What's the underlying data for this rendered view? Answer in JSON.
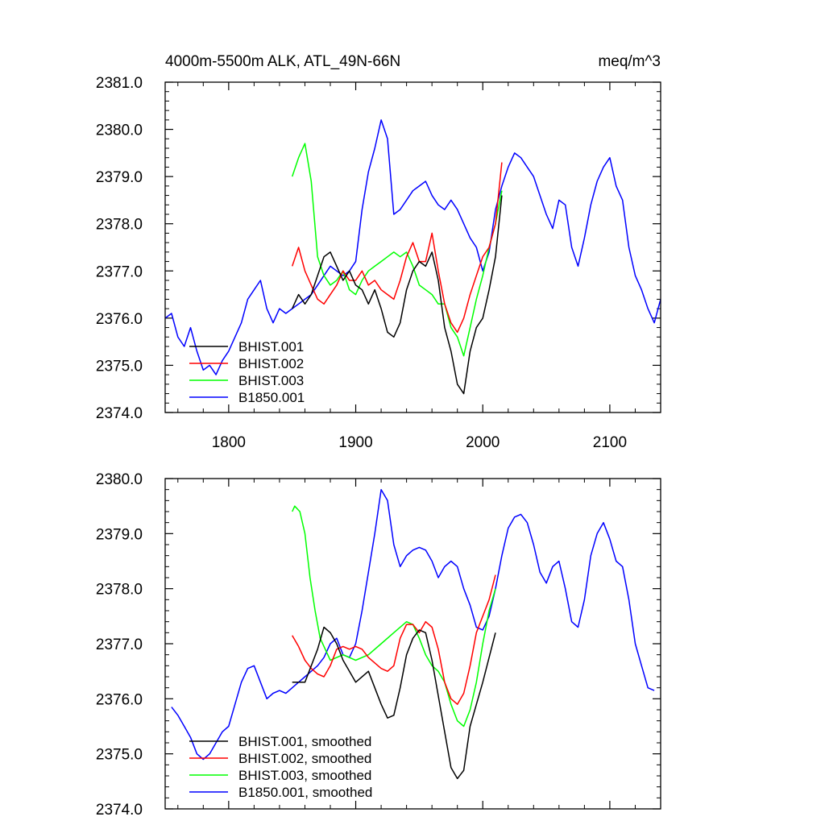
{
  "header": {
    "left": "4000m-5500m ALK, ATL_49N-66N",
    "right": "meq/m^3"
  },
  "colors": {
    "BHIST.001": "#000000",
    "BHIST.002": "#ff0000",
    "BHIST.003": "#00ff00",
    "B1850.001": "#0000ff"
  },
  "chart_data": [
    {
      "type": "line",
      "title": "4000m-5500m ALK, ATL_49N-66N",
      "units": "meq/m^3",
      "xlim": [
        1750,
        2140
      ],
      "ylim": [
        2374.0,
        2381.0
      ],
      "xticks": [
        1800,
        1900,
        2000,
        2100
      ],
      "xtick_labels": [
        "1800",
        "1900",
        "2000",
        "2100"
      ],
      "yticks": [
        2374.0,
        2375.0,
        2376.0,
        2377.0,
        2378.0,
        2379.0,
        2380.0,
        2381.0
      ],
      "ytick_labels": [
        "2374.0",
        "2375.0",
        "2376.0",
        "2377.0",
        "2378.0",
        "2379.0",
        "2380.0",
        "2381.0"
      ],
      "legend_position": "bottom-left",
      "series": [
        {
          "name": "BHIST.001",
          "color": "#000000",
          "x": [
            1850,
            1855,
            1860,
            1865,
            1870,
            1875,
            1880,
            1885,
            1890,
            1895,
            1900,
            1905,
            1910,
            1915,
            1920,
            1925,
            1930,
            1935,
            1940,
            1945,
            1950,
            1955,
            1960,
            1965,
            1970,
            1975,
            1980,
            1985,
            1990,
            1995,
            2000,
            2005,
            2010,
            2015
          ],
          "y": [
            2376.2,
            2376.5,
            2376.3,
            2376.5,
            2376.9,
            2377.3,
            2377.4,
            2377.1,
            2376.8,
            2377.0,
            2376.7,
            2376.6,
            2376.3,
            2376.6,
            2376.2,
            2375.7,
            2375.6,
            2375.9,
            2376.6,
            2377.0,
            2377.2,
            2377.1,
            2377.4,
            2376.8,
            2375.8,
            2375.3,
            2374.6,
            2374.4,
            2375.3,
            2375.8,
            2376.0,
            2376.6,
            2377.3,
            2378.6
          ]
        },
        {
          "name": "BHIST.002",
          "color": "#ff0000",
          "x": [
            1850,
            1855,
            1860,
            1865,
            1870,
            1875,
            1880,
            1885,
            1890,
            1895,
            1900,
            1905,
            1910,
            1915,
            1920,
            1925,
            1930,
            1935,
            1940,
            1945,
            1950,
            1955,
            1960,
            1965,
            1970,
            1975,
            1980,
            1985,
            1990,
            1995,
            2000,
            2005,
            2010,
            2015
          ],
          "y": [
            2377.1,
            2377.5,
            2377.0,
            2376.7,
            2376.4,
            2376.3,
            2376.5,
            2376.7,
            2377.0,
            2376.8,
            2376.8,
            2377.0,
            2376.7,
            2376.8,
            2376.6,
            2376.5,
            2376.4,
            2376.8,
            2377.3,
            2377.6,
            2377.2,
            2377.2,
            2377.8,
            2377.0,
            2376.3,
            2375.9,
            2375.7,
            2376.0,
            2376.5,
            2376.9,
            2377.3,
            2377.5,
            2378.0,
            2379.3
          ]
        },
        {
          "name": "BHIST.003",
          "color": "#00ff00",
          "x": [
            1850,
            1855,
            1860,
            1865,
            1870,
            1875,
            1880,
            1885,
            1890,
            1895,
            1900,
            1905,
            1910,
            1915,
            1920,
            1925,
            1930,
            1935,
            1940,
            1945,
            1950,
            1955,
            1960,
            1965,
            1970,
            1975,
            1980,
            1985,
            1990,
            1995,
            2000,
            2005,
            2010,
            2015
          ],
          "y": [
            2379.0,
            2379.4,
            2379.7,
            2378.9,
            2377.3,
            2376.9,
            2376.7,
            2376.8,
            2377.0,
            2376.6,
            2376.5,
            2376.8,
            2377.0,
            2377.1,
            2377.2,
            2377.3,
            2377.4,
            2377.3,
            2377.4,
            2377.1,
            2376.7,
            2376.6,
            2376.5,
            2376.3,
            2376.3,
            2375.8,
            2375.6,
            2375.2,
            2375.8,
            2376.4,
            2376.9,
            2377.5,
            2378.0,
            2378.7
          ]
        },
        {
          "name": "B1850.001",
          "color": "#0000ff",
          "x": [
            1750,
            1755,
            1760,
            1765,
            1770,
            1775,
            1780,
            1785,
            1790,
            1795,
            1800,
            1805,
            1810,
            1815,
            1820,
            1825,
            1830,
            1835,
            1840,
            1845,
            1850,
            1855,
            1860,
            1865,
            1870,
            1875,
            1880,
            1885,
            1890,
            1895,
            1900,
            1905,
            1910,
            1915,
            1920,
            1925,
            1930,
            1935,
            1940,
            1945,
            1950,
            1955,
            1960,
            1965,
            1970,
            1975,
            1980,
            1985,
            1990,
            1995,
            2000,
            2005,
            2010,
            2015,
            2020,
            2025,
            2030,
            2035,
            2040,
            2045,
            2050,
            2055,
            2060,
            2065,
            2070,
            2075,
            2080,
            2085,
            2090,
            2095,
            2100,
            2105,
            2110,
            2115,
            2120,
            2125,
            2130,
            2135,
            2140
          ],
          "y": [
            2376.0,
            2376.1,
            2375.6,
            2375.4,
            2375.8,
            2375.3,
            2374.9,
            2375.0,
            2374.8,
            2375.1,
            2375.3,
            2375.6,
            2375.9,
            2376.4,
            2376.6,
            2376.8,
            2376.2,
            2375.9,
            2376.2,
            2376.1,
            2376.2,
            2376.3,
            2376.4,
            2376.5,
            2376.7,
            2376.9,
            2377.1,
            2377.0,
            2376.9,
            2377.0,
            2377.2,
            2378.3,
            2379.1,
            2379.6,
            2380.2,
            2379.8,
            2378.2,
            2378.3,
            2378.5,
            2378.7,
            2378.8,
            2378.9,
            2378.6,
            2378.4,
            2378.3,
            2378.5,
            2378.3,
            2378.0,
            2377.7,
            2377.5,
            2377.0,
            2377.4,
            2378.3,
            2378.8,
            2379.2,
            2379.5,
            2379.4,
            2379.2,
            2379.0,
            2378.6,
            2378.2,
            2377.9,
            2378.5,
            2378.4,
            2377.5,
            2377.1,
            2377.7,
            2378.4,
            2378.9,
            2379.2,
            2379.4,
            2378.8,
            2378.5,
            2377.5,
            2376.9,
            2376.6,
            2376.2,
            2375.9,
            2376.4
          ]
        }
      ]
    },
    {
      "type": "line",
      "xlim": [
        1750,
        2140
      ],
      "ylim": [
        2374.0,
        2380.0
      ],
      "xticks": [
        1800,
        1900,
        2000,
        2100
      ],
      "yticks": [
        2374.0,
        2375.0,
        2376.0,
        2377.0,
        2378.0,
        2379.0,
        2380.0
      ],
      "ytick_labels": [
        "2374.0",
        "2375.0",
        "2376.0",
        "2377.0",
        "2378.0",
        "2379.0",
        "2380.0"
      ],
      "legend_position": "bottom-left",
      "series": [
        {
          "name": "BHIST.001, smoothed",
          "color": "#000000",
          "x": [
            1850,
            1860,
            1870,
            1875,
            1880,
            1885,
            1890,
            1900,
            1910,
            1920,
            1925,
            1930,
            1935,
            1940,
            1945,
            1950,
            1955,
            1960,
            1970,
            1975,
            1980,
            1985,
            1990,
            2000,
            2010
          ],
          "y": [
            2376.3,
            2376.3,
            2376.9,
            2377.3,
            2377.2,
            2377.0,
            2376.7,
            2376.3,
            2376.5,
            2375.9,
            2375.65,
            2375.7,
            2376.2,
            2376.8,
            2377.1,
            2377.25,
            2377.2,
            2376.7,
            2375.4,
            2374.75,
            2374.55,
            2374.7,
            2375.5,
            2376.3,
            2377.2
          ]
        },
        {
          "name": "BHIST.002, smoothed",
          "color": "#ff0000",
          "x": [
            1850,
            1855,
            1860,
            1865,
            1870,
            1875,
            1880,
            1885,
            1890,
            1895,
            1900,
            1905,
            1910,
            1920,
            1925,
            1930,
            1935,
            1940,
            1945,
            1950,
            1955,
            1960,
            1965,
            1970,
            1975,
            1980,
            1985,
            1990,
            1995,
            2000,
            2005,
            2010
          ],
          "y": [
            2377.15,
            2376.95,
            2376.7,
            2376.55,
            2376.45,
            2376.4,
            2376.6,
            2376.9,
            2376.95,
            2376.9,
            2376.95,
            2376.9,
            2376.75,
            2376.55,
            2376.5,
            2376.6,
            2377.1,
            2377.35,
            2377.35,
            2377.2,
            2377.4,
            2377.3,
            2376.9,
            2376.3,
            2376.0,
            2375.9,
            2376.1,
            2376.6,
            2377.2,
            2377.5,
            2377.8,
            2378.25
          ]
        },
        {
          "name": "BHIST.003, smoothed",
          "color": "#00ff00",
          "x": [
            1850,
            1852,
            1856,
            1860,
            1864,
            1868,
            1872,
            1880,
            1890,
            1900,
            1910,
            1920,
            1930,
            1940,
            1945,
            1950,
            1955,
            1960,
            1965,
            1970,
            1975,
            1980,
            1985,
            1990,
            1995,
            2000,
            2005,
            2010
          ],
          "y": [
            2379.4,
            2379.5,
            2379.4,
            2379.0,
            2378.2,
            2377.6,
            2377.1,
            2376.7,
            2376.8,
            2376.7,
            2376.8,
            2377.0,
            2377.2,
            2377.4,
            2377.35,
            2377.1,
            2376.8,
            2376.6,
            2376.5,
            2376.3,
            2375.9,
            2375.6,
            2375.5,
            2375.8,
            2376.3,
            2377.0,
            2377.6,
            2378.0
          ]
        },
        {
          "name": "B1850.001, smoothed",
          "color": "#0000ff",
          "x": [
            1755,
            1760,
            1765,
            1770,
            1775,
            1780,
            1785,
            1790,
            1795,
            1800,
            1805,
            1810,
            1815,
            1820,
            1825,
            1830,
            1835,
            1840,
            1845,
            1850,
            1855,
            1860,
            1865,
            1870,
            1875,
            1880,
            1885,
            1890,
            1895,
            1900,
            1905,
            1910,
            1915,
            1920,
            1925,
            1930,
            1935,
            1940,
            1945,
            1950,
            1955,
            1960,
            1965,
            1970,
            1975,
            1980,
            1985,
            1990,
            1995,
            2000,
            2005,
            2010,
            2015,
            2020,
            2025,
            2030,
            2035,
            2040,
            2045,
            2050,
            2055,
            2060,
            2065,
            2070,
            2075,
            2080,
            2085,
            2090,
            2095,
            2100,
            2105,
            2110,
            2115,
            2120,
            2125,
            2130,
            2135
          ],
          "y": [
            2375.85,
            2375.7,
            2375.5,
            2375.3,
            2375.0,
            2374.9,
            2375.0,
            2375.2,
            2375.4,
            2375.5,
            2375.9,
            2376.3,
            2376.55,
            2376.6,
            2376.3,
            2376.0,
            2376.1,
            2376.15,
            2376.1,
            2376.2,
            2376.3,
            2376.4,
            2376.5,
            2376.6,
            2376.75,
            2377.0,
            2377.1,
            2376.8,
            2376.75,
            2377.0,
            2377.6,
            2378.3,
            2379.0,
            2379.8,
            2379.6,
            2378.8,
            2378.4,
            2378.6,
            2378.7,
            2378.75,
            2378.7,
            2378.5,
            2378.2,
            2378.4,
            2378.5,
            2378.4,
            2378.0,
            2377.7,
            2377.3,
            2377.25,
            2377.5,
            2378.0,
            2378.6,
            2379.1,
            2379.3,
            2379.35,
            2379.2,
            2378.8,
            2378.3,
            2378.1,
            2378.4,
            2378.5,
            2378.0,
            2377.4,
            2377.3,
            2377.8,
            2378.6,
            2379.0,
            2379.2,
            2378.9,
            2378.5,
            2378.4,
            2377.8,
            2377.0,
            2376.6,
            2376.2,
            2376.15
          ]
        }
      ]
    }
  ]
}
